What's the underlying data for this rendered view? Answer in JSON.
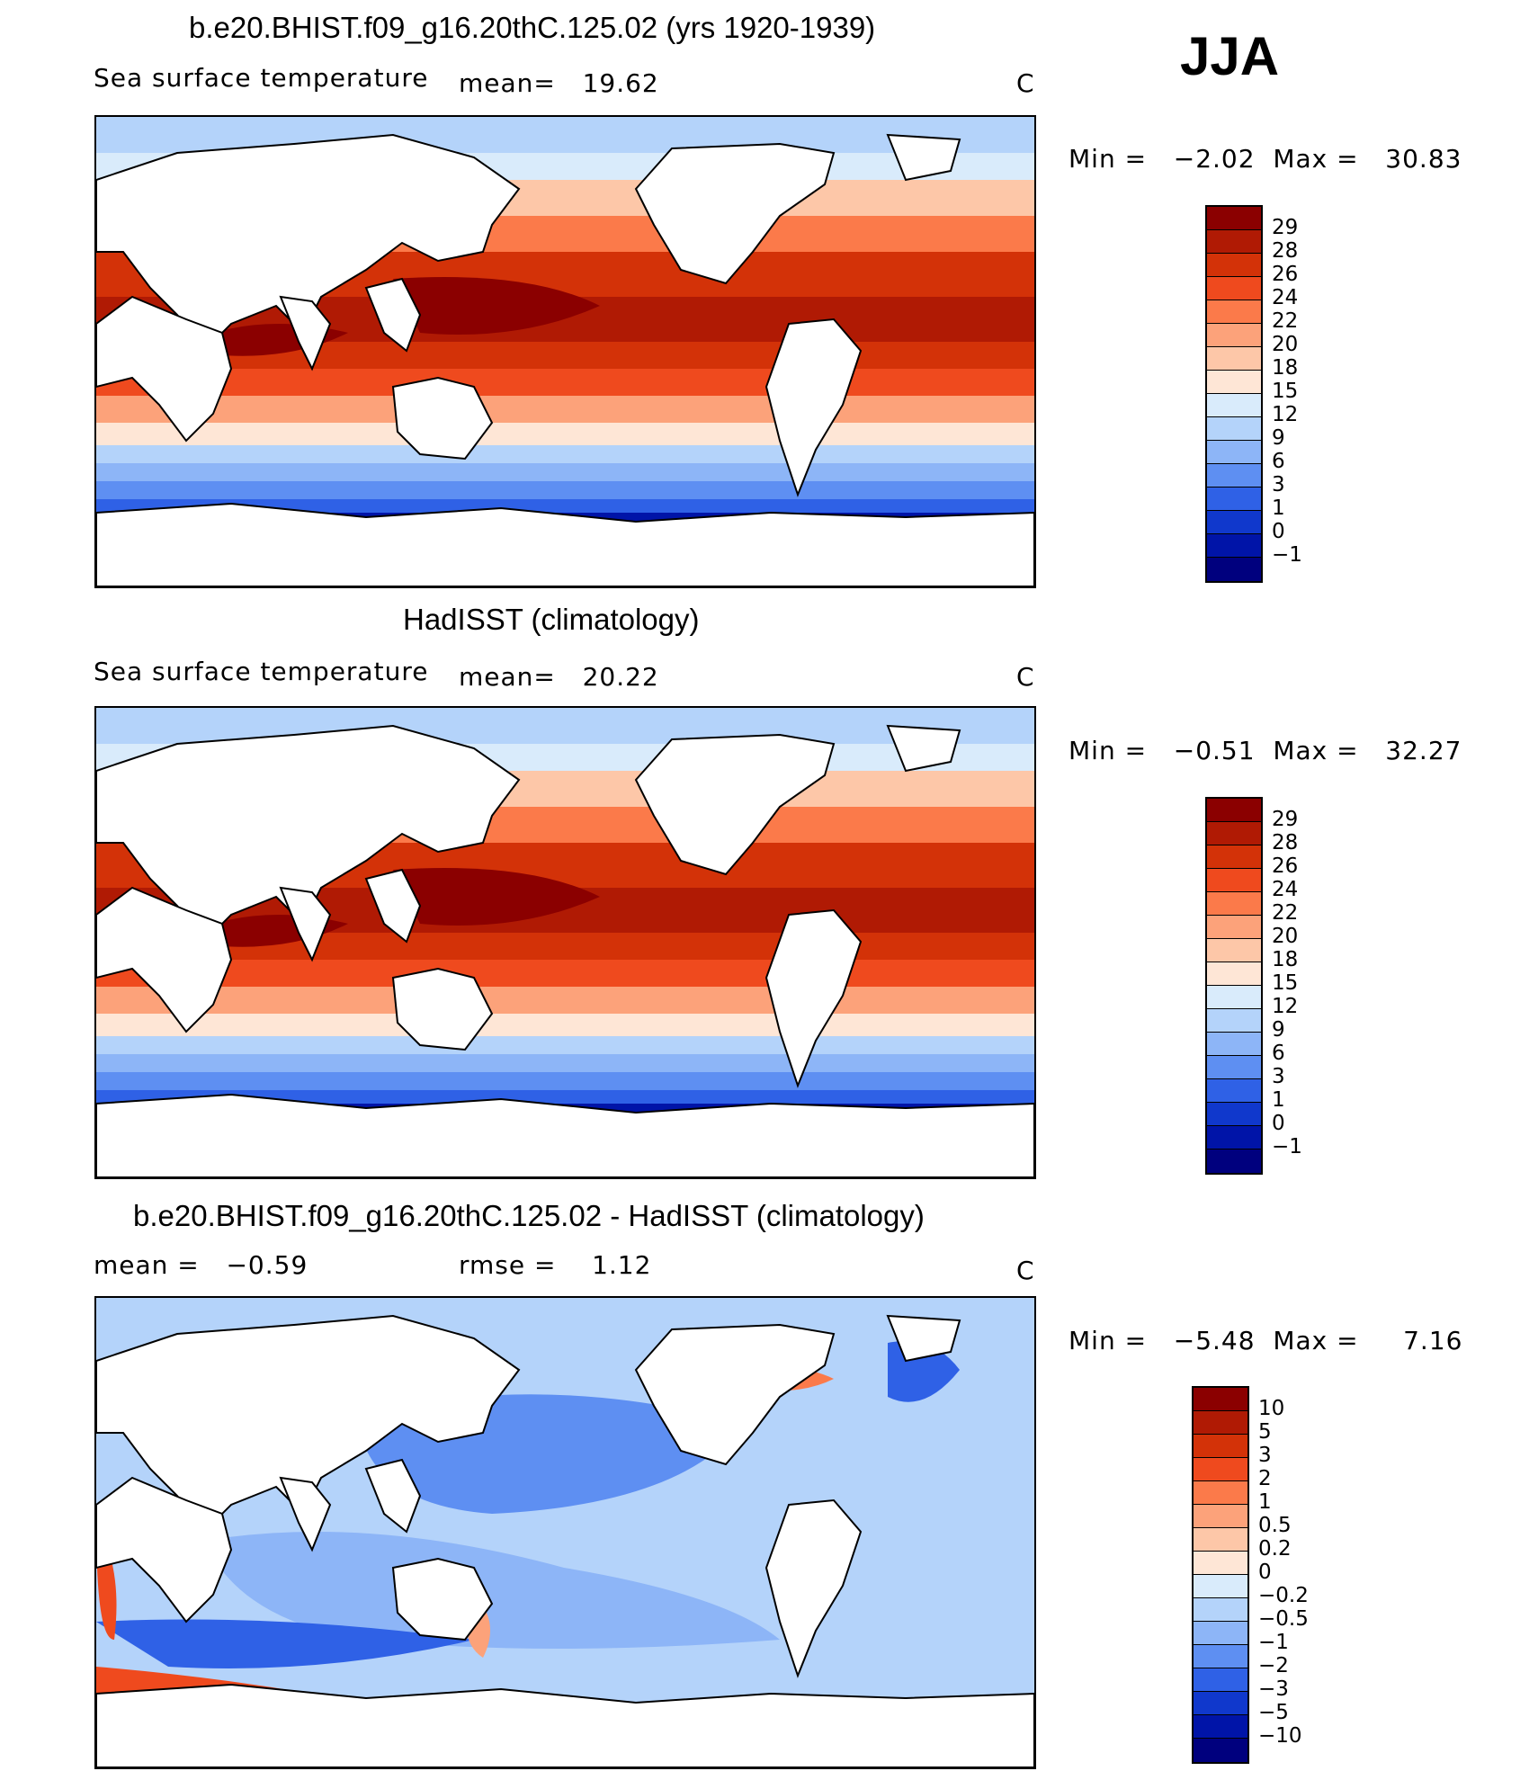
{
  "season": "JJA",
  "panels": [
    {
      "title": "b.e20.BHIST.f09_g16.20thC.125.02 (yrs 1920-1939)",
      "variable": "Sea surface temperature",
      "stat1": "mean=   19.62",
      "units": "C",
      "minmax": "Min =   −2.02  Max =   30.83",
      "colorbar_labels": [
        "29",
        "28",
        "26",
        "24",
        "22",
        "20",
        "18",
        "15",
        "12",
        "9",
        "6",
        "3",
        "1",
        "0",
        "−1"
      ],
      "colorbar_colors": [
        "#8b0000",
        "#b01a04",
        "#d33208",
        "#ef4a1e",
        "#fb7a4a",
        "#fca27a",
        "#fdc7a8",
        "#fee6d6",
        "#d9ebfb",
        "#b4d3fa",
        "#8db5f7",
        "#5e8ff2",
        "#2f61e6",
        "#1038cc",
        "#0014a8",
        "#00007e"
      ]
    },
    {
      "title": "HadISST (climatology)",
      "variable": "Sea surface temperature",
      "stat1": "mean=   20.22",
      "units": "C",
      "minmax": "Min =   −0.51  Max =   32.27",
      "colorbar_labels": [
        "29",
        "28",
        "26",
        "24",
        "22",
        "20",
        "18",
        "15",
        "12",
        "9",
        "6",
        "3",
        "1",
        "0",
        "−1"
      ],
      "colorbar_colors": [
        "#8b0000",
        "#b01a04",
        "#d33208",
        "#ef4a1e",
        "#fb7a4a",
        "#fca27a",
        "#fdc7a8",
        "#fee6d6",
        "#d9ebfb",
        "#b4d3fa",
        "#8db5f7",
        "#5e8ff2",
        "#2f61e6",
        "#1038cc",
        "#0014a8",
        "#00007e"
      ]
    },
    {
      "title": "b.e20.BHIST.f09_g16.20thC.125.02 - HadISST (climatology)",
      "stat1": "mean =   −0.59",
      "stat2": "rmse =    1.12",
      "units": "C",
      "minmax": "Min =   −5.48  Max =     7.16",
      "colorbar_labels": [
        "10",
        "5",
        "3",
        "2",
        "1",
        "0.5",
        "0.2",
        "0",
        "−0.2",
        "−0.5",
        "−1",
        "−2",
        "−3",
        "−5",
        "−10"
      ],
      "colorbar_colors": [
        "#8b0000",
        "#b01a04",
        "#d33208",
        "#ef4a1e",
        "#fb7a4a",
        "#fca27a",
        "#fdc7a8",
        "#fee6d6",
        "#d9ebfb",
        "#b4d3fa",
        "#8db5f7",
        "#5e8ff2",
        "#2f61e6",
        "#1038cc",
        "#0014a8",
        "#00007e"
      ]
    }
  ]
}
